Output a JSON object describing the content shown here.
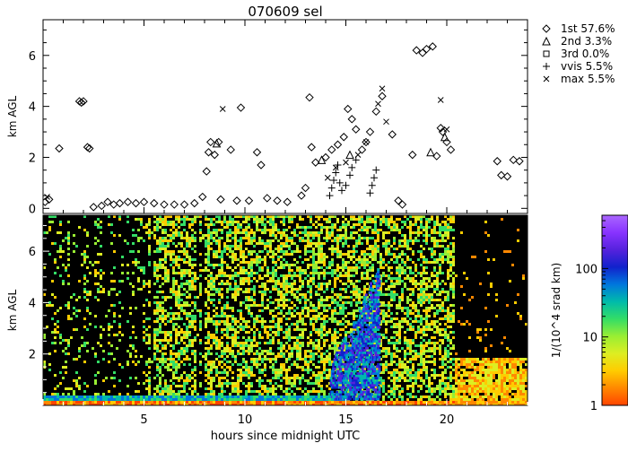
{
  "chart_data": [
    {
      "type": "scatter",
      "title": "070609 sel",
      "ylabel": "km AGL",
      "xlim": [
        0,
        24
      ],
      "ylim": [
        -0.2,
        7.4
      ],
      "yticks": [
        0,
        2,
        4,
        6
      ],
      "grid": false,
      "legend": "right",
      "series": [
        {
          "name": "1st",
          "marker": "diamond",
          "legend_label": "1st  57.6%",
          "points": [
            [
              0.1,
              0.25
            ],
            [
              0.3,
              0.35
            ],
            [
              0.8,
              2.35
            ],
            [
              1.8,
              4.2
            ],
            [
              1.9,
              4.15
            ],
            [
              2.0,
              4.2
            ],
            [
              2.2,
              2.4
            ],
            [
              2.3,
              2.35
            ],
            [
              2.5,
              0.05
            ],
            [
              2.9,
              0.1
            ],
            [
              3.2,
              0.25
            ],
            [
              3.5,
              0.15
            ],
            [
              3.8,
              0.2
            ],
            [
              4.2,
              0.25
            ],
            [
              4.6,
              0.2
            ],
            [
              5.0,
              0.25
            ],
            [
              5.5,
              0.2
            ],
            [
              6.0,
              0.15
            ],
            [
              6.5,
              0.15
            ],
            [
              7.0,
              0.15
            ],
            [
              7.5,
              0.2
            ],
            [
              7.9,
              0.45
            ],
            [
              8.1,
              1.45
            ],
            [
              8.2,
              2.2
            ],
            [
              8.3,
              2.6
            ],
            [
              8.5,
              2.1
            ],
            [
              8.7,
              2.6
            ],
            [
              8.8,
              0.35
            ],
            [
              9.3,
              2.3
            ],
            [
              9.6,
              0.3
            ],
            [
              9.8,
              3.95
            ],
            [
              10.2,
              0.3
            ],
            [
              10.6,
              2.2
            ],
            [
              10.8,
              1.7
            ],
            [
              11.1,
              0.4
            ],
            [
              11.6,
              0.3
            ],
            [
              12.1,
              0.25
            ],
            [
              12.8,
              0.5
            ],
            [
              13.0,
              0.8
            ],
            [
              13.2,
              4.35
            ],
            [
              13.3,
              2.4
            ],
            [
              13.5,
              1.8
            ],
            [
              14.0,
              2.0
            ],
            [
              14.3,
              2.3
            ],
            [
              14.6,
              2.5
            ],
            [
              14.9,
              2.8
            ],
            [
              15.1,
              3.9
            ],
            [
              15.3,
              3.5
            ],
            [
              15.5,
              3.1
            ],
            [
              15.8,
              2.3
            ],
            [
              16.0,
              2.6
            ],
            [
              16.2,
              3.0
            ],
            [
              16.5,
              3.8
            ],
            [
              16.8,
              4.4
            ],
            [
              17.3,
              2.9
            ],
            [
              17.6,
              0.3
            ],
            [
              17.8,
              0.15
            ],
            [
              18.3,
              2.1
            ],
            [
              18.5,
              6.2
            ],
            [
              18.8,
              6.1
            ],
            [
              19.0,
              6.25
            ],
            [
              19.3,
              6.35
            ],
            [
              19.5,
              2.05
            ],
            [
              19.7,
              3.15
            ],
            [
              19.8,
              3.0
            ],
            [
              20.0,
              2.6
            ],
            [
              20.2,
              2.3
            ],
            [
              22.5,
              1.85
            ],
            [
              22.7,
              1.3
            ],
            [
              23.0,
              1.25
            ],
            [
              23.3,
              1.9
            ],
            [
              23.6,
              1.85
            ]
          ]
        },
        {
          "name": "2nd",
          "marker": "triangle",
          "legend_label": "2nd   3.3%",
          "points": [
            [
              8.6,
              2.55
            ],
            [
              13.8,
              1.9
            ],
            [
              15.2,
              2.1
            ],
            [
              19.2,
              2.2
            ],
            [
              19.9,
              2.8
            ]
          ]
        },
        {
          "name": "3rd",
          "marker": "square",
          "legend_label": "3rd   0.0%",
          "points": []
        },
        {
          "name": "vvis",
          "marker": "plus",
          "legend_label": "vvis   5.5%",
          "points": [
            [
              14.2,
              0.5
            ],
            [
              14.3,
              0.8
            ],
            [
              14.4,
              1.1
            ],
            [
              14.5,
              1.4
            ],
            [
              14.6,
              1.7
            ],
            [
              14.7,
              1.0
            ],
            [
              14.8,
              0.7
            ],
            [
              15.0,
              0.9
            ],
            [
              15.2,
              1.3
            ],
            [
              15.3,
              1.6
            ],
            [
              15.5,
              1.9
            ],
            [
              16.2,
              0.6
            ],
            [
              16.3,
              0.9
            ],
            [
              16.4,
              1.2
            ],
            [
              16.5,
              1.5
            ]
          ]
        },
        {
          "name": "max",
          "marker": "x",
          "legend_label": "max   5.5%",
          "points": [
            [
              0.2,
              0.45
            ],
            [
              8.9,
              3.9
            ],
            [
              14.1,
              1.2
            ],
            [
              14.5,
              1.6
            ],
            [
              15.0,
              1.8
            ],
            [
              15.6,
              2.1
            ],
            [
              16.0,
              2.6
            ],
            [
              16.6,
              4.1
            ],
            [
              16.8,
              4.7
            ],
            [
              17.0,
              3.4
            ],
            [
              19.7,
              4.25
            ],
            [
              20.0,
              3.1
            ]
          ]
        }
      ]
    },
    {
      "type": "heatmap",
      "xlabel": "hours since midnight UTC",
      "ylabel": "km AGL",
      "xlim": [
        0,
        24
      ],
      "ylim": [
        0,
        7.4
      ],
      "xticks": [
        5,
        10,
        15,
        20
      ],
      "yticks": [
        2,
        4,
        6
      ],
      "colorbar": {
        "label": "1/(10^4 srad km)",
        "scale": "log",
        "range": [
          1,
          600
        ],
        "ticks": [
          1,
          10,
          100
        ],
        "tick_labels": [
          "1",
          "10",
          "100"
        ],
        "colors": [
          "#ff4400",
          "#ff8800",
          "#ffcc00",
          "#ddee22",
          "#99ee33",
          "#33dd66",
          "#00bbaa",
          "#0077dd",
          "#1122cc",
          "#5522dd",
          "#8833ff",
          "#aa66ff"
        ]
      }
    }
  ]
}
